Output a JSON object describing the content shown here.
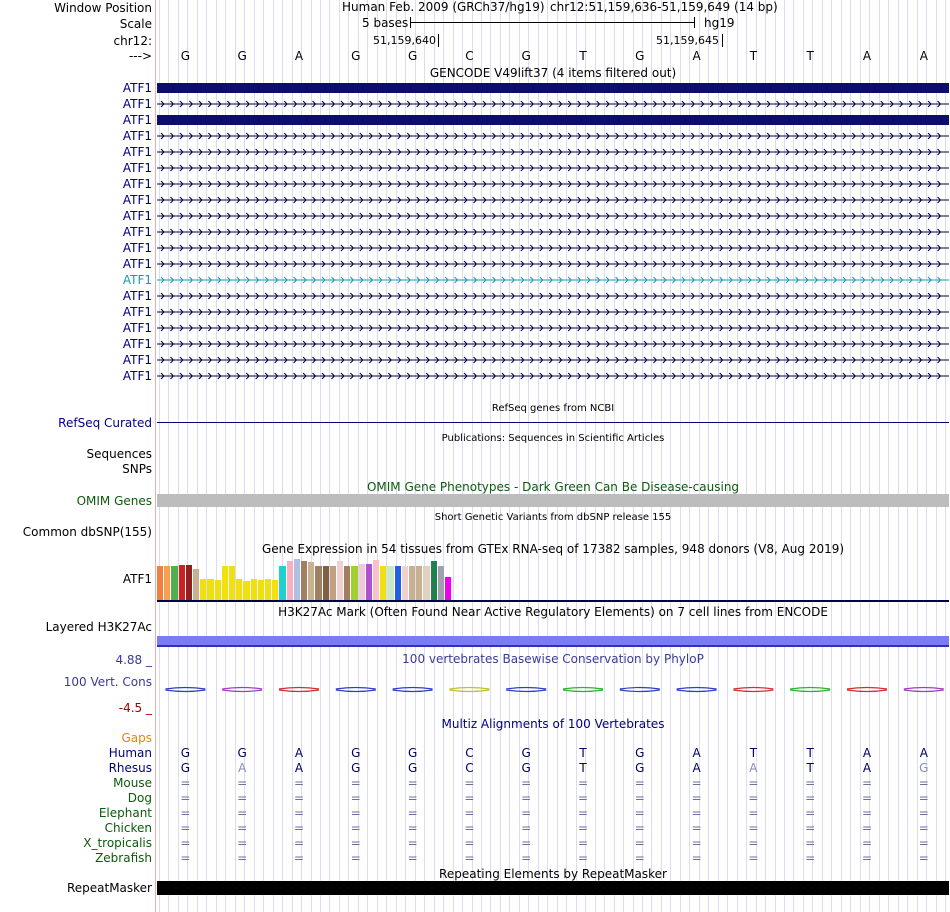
{
  "header": {
    "window_position_label": "Window Position",
    "scale_label": "Scale",
    "chrom_label": "chr12:",
    "arrow_label": "--->",
    "assembly": "Human Feb. 2009 (GRCh37/hg19)",
    "position": "chr12:51,159,636-51,159,649 (14 bp)",
    "scale_text": "5 bases",
    "db": "hg19",
    "coord1": "51,159,640",
    "coord2": "51,159,645"
  },
  "bases": [
    "G",
    "G",
    "A",
    "G",
    "G",
    "C",
    "G",
    "T",
    "G",
    "A",
    "T",
    "T",
    "A",
    "A"
  ],
  "gencode": {
    "title": "GENCODE V49lift37 (4 items filtered out)",
    "gene_label": "ATF1",
    "rows": [
      {
        "label": "ATF1",
        "style": "thick"
      },
      {
        "label": "ATF1",
        "style": "arrow"
      },
      {
        "label": "ATF1",
        "style": "thick"
      },
      {
        "label": "ATF1",
        "style": "arrow"
      },
      {
        "label": "ATF1",
        "style": "arrow"
      },
      {
        "label": "ATF1",
        "style": "arrow"
      },
      {
        "label": "ATF1",
        "style": "arrow"
      },
      {
        "label": "ATF1",
        "style": "arrow"
      },
      {
        "label": "ATF1",
        "style": "arrow"
      },
      {
        "label": "ATF1",
        "style": "arrow"
      },
      {
        "label": "ATF1",
        "style": "arrow"
      },
      {
        "label": "ATF1",
        "style": "arrow"
      },
      {
        "label": "ATF1",
        "style": "teal"
      },
      {
        "label": "ATF1",
        "style": "arrow"
      },
      {
        "label": "ATF1",
        "style": "arrow"
      },
      {
        "label": "ATF1",
        "style": "arrow"
      },
      {
        "label": "ATF1",
        "style": "arrow"
      },
      {
        "label": "ATF1",
        "style": "arrow"
      },
      {
        "label": "ATF1",
        "style": "arrow"
      }
    ]
  },
  "refseq": {
    "title": "RefSeq genes from NCBI",
    "label": "RefSeq Curated"
  },
  "pubs": {
    "title": "Publications: Sequences in Scientific Articles",
    "label1": "Sequences",
    "label2": "SNPs"
  },
  "omim": {
    "title": "OMIM Gene Phenotypes - Dark Green Can Be Disease-causing",
    "label": "OMIM Genes"
  },
  "dbsnp": {
    "title": "Short Genetic Variants from dbSNP release 155",
    "label": "Common dbSNP(155)"
  },
  "gtex": {
    "title": "Gene Expression in 54 tissues from GTEx RNA-seq of 17382 samples, 948 donors (V8, Aug 2019)",
    "label": "ATF1",
    "bars": [
      {
        "c": "#f08040",
        "h": 0.82
      },
      {
        "c": "#f5a050",
        "h": 0.82
      },
      {
        "c": "#50b050",
        "h": 0.82
      },
      {
        "c": "#d02020",
        "h": 0.84
      },
      {
        "c": "#902020",
        "h": 0.84
      },
      {
        "c": "#c8b090",
        "h": 0.73
      },
      {
        "c": "#f0e010",
        "h": 0.5
      },
      {
        "c": "#f0e010",
        "h": 0.5
      },
      {
        "c": "#f0e010",
        "h": 0.48
      },
      {
        "c": "#f0e010",
        "h": 0.82
      },
      {
        "c": "#f0e010",
        "h": 0.82
      },
      {
        "c": "#f0e010",
        "h": 0.5
      },
      {
        "c": "#f0e010",
        "h": 0.45
      },
      {
        "c": "#f0e010",
        "h": 0.5
      },
      {
        "c": "#f0e010",
        "h": 0.48
      },
      {
        "c": "#f0e010",
        "h": 0.5
      },
      {
        "c": "#f0e010",
        "h": 0.48
      },
      {
        "c": "#20d0d0",
        "h": 0.82
      },
      {
        "c": "#f8b0c0",
        "h": 0.93
      },
      {
        "c": "#b0c0e0",
        "h": 0.98
      },
      {
        "c": "#a08060",
        "h": 0.94
      },
      {
        "c": "#c8b090",
        "h": 0.9
      },
      {
        "c": "#a08060",
        "h": 0.8
      },
      {
        "c": "#806040",
        "h": 0.8
      },
      {
        "c": "#c0a080",
        "h": 0.8
      },
      {
        "c": "#f0d0d0",
        "h": 0.94
      },
      {
        "c": "#a08060",
        "h": 0.8
      },
      {
        "c": "#a0d030",
        "h": 0.8
      },
      {
        "c": "#f0c8d8",
        "h": 0.86
      },
      {
        "c": "#b050d0",
        "h": 0.86
      },
      {
        "c": "#f8c0c8",
        "h": 0.96
      },
      {
        "c": "#f0e010",
        "h": 0.82
      },
      {
        "c": "#c8e8c8",
        "h": 0.82
      },
      {
        "c": "#2060e0",
        "h": 0.82
      },
      {
        "c": "#f0d0d0",
        "h": 0.82
      },
      {
        "c": "#c8b090",
        "h": 0.82
      },
      {
        "c": "#c8b090",
        "h": 0.82
      },
      {
        "c": "#e0d0c0",
        "h": 0.82
      },
      {
        "c": "#208050",
        "h": 0.94
      },
      {
        "c": "#a0a0b0",
        "h": 0.8
      },
      {
        "c": "#f000f0",
        "h": 0.55
      }
    ]
  },
  "h3k27ac": {
    "title": "H3K27Ac Mark (Often Found Near Active Regulatory Elements) on 7 cell lines from ENCODE",
    "label": "Layered H3K27Ac"
  },
  "cons": {
    "title": "100 vertebrates Basewise Conservation by PhyloP",
    "label": "100 Vert. Cons",
    "max": "4.88 _",
    "min": "-4.5 _",
    "colors": [
      "#3040c0",
      "#a040c0",
      "#d03030",
      "#3040c0",
      "#3040c0",
      "#c0c030",
      "#3040c0",
      "#30b030",
      "#3040c0",
      "#3040c0",
      "#d03030",
      "#30b030",
      "#d03030",
      "#a040c0"
    ]
  },
  "multiz": {
    "title": "Multiz Alignments of 100 Vertebrates",
    "gaps_label": "Gaps",
    "species": [
      {
        "name": "Human",
        "seq": [
          "G",
          "G",
          "A",
          "G",
          "G",
          "C",
          "G",
          "T",
          "G",
          "A",
          "T",
          "T",
          "A",
          "A"
        ]
      },
      {
        "name": "Rhesus",
        "seq": [
          "G",
          "A",
          "A",
          "G",
          "G",
          "C",
          "G",
          "T",
          "G",
          "A",
          "A",
          "T",
          "A",
          "G"
        ],
        "diff": [
          1,
          10,
          13
        ]
      },
      {
        "name": "Mouse",
        "seq": [
          "=",
          "=",
          "=",
          "=",
          "=",
          "=",
          "=",
          "=",
          "=",
          "=",
          "=",
          "=",
          "=",
          "="
        ]
      },
      {
        "name": "Dog",
        "seq": [
          "=",
          "=",
          "=",
          "=",
          "=",
          "=",
          "=",
          "=",
          "=",
          "=",
          "=",
          "=",
          "=",
          "="
        ]
      },
      {
        "name": "Elephant",
        "seq": [
          "=",
          "=",
          "=",
          "=",
          "=",
          "=",
          "=",
          "=",
          "=",
          "=",
          "=",
          "=",
          "=",
          "="
        ]
      },
      {
        "name": "Chicken",
        "seq": [
          "=",
          "=",
          "=",
          "=",
          "=",
          "=",
          "=",
          "=",
          "=",
          "=",
          "=",
          "=",
          "=",
          "="
        ]
      },
      {
        "name": "X_tropicalis",
        "seq": [
          "=",
          "=",
          "=",
          "=",
          "=",
          "=",
          "=",
          "=",
          "=",
          "=",
          "=",
          "=",
          "=",
          "="
        ]
      },
      {
        "name": "Zebrafish",
        "seq": [
          "=",
          "=",
          "=",
          "=",
          "=",
          "=",
          "=",
          "=",
          "=",
          "=",
          "=",
          "=",
          "=",
          "="
        ]
      }
    ]
  },
  "repeatmasker": {
    "title": "Repeating Elements by RepeatMasker",
    "label": "RepeatMasker"
  }
}
